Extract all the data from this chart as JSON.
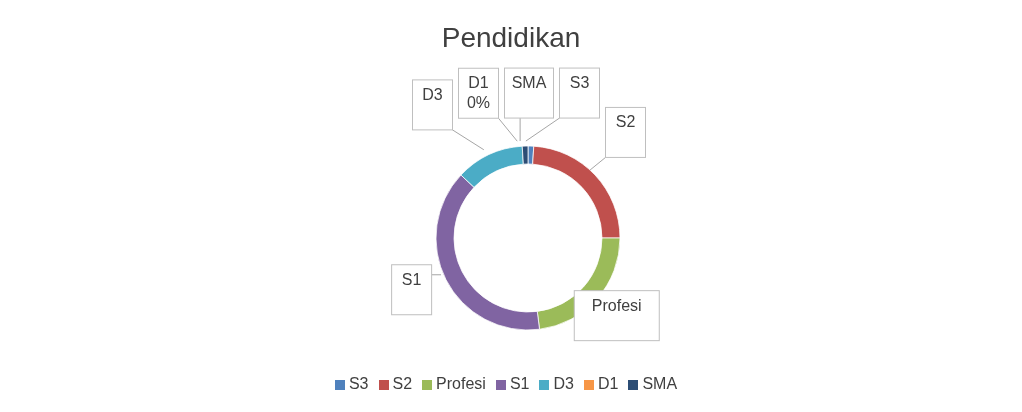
{
  "chart_data": {
    "type": "donut",
    "title": "Pendidikan",
    "categories": [
      "S3",
      "S2",
      "Profesi",
      "S1",
      "D3",
      "D1",
      "SMA"
    ],
    "values": [
      1,
      24,
      23,
      39,
      12,
      0,
      1
    ],
    "value_labels": [
      null,
      null,
      null,
      null,
      null,
      "0%",
      null
    ],
    "colors": [
      "#4f81bd",
      "#c0504d",
      "#9bbb59",
      "#8064a2",
      "#4bacc6",
      "#f79646",
      "#2c4d75"
    ],
    "legend": "bottom"
  }
}
